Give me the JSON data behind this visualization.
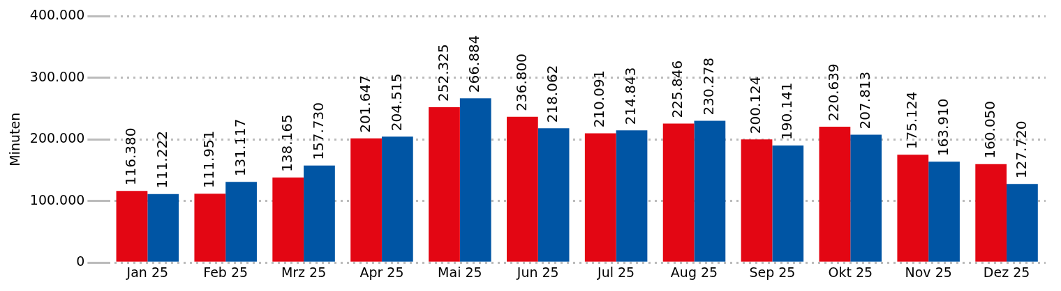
{
  "chart_data": {
    "type": "bar",
    "ylabel": "Minuten",
    "categories": [
      "Jan 25",
      "Feb 25",
      "Mrz 25",
      "Apr 25",
      "Mai 25",
      "Jun 25",
      "Jul 25",
      "Aug 25",
      "Sep 25",
      "Okt 25",
      "Nov 25",
      "Dez 25"
    ],
    "series": [
      {
        "color": "#e30613",
        "values": [
          116380,
          111951,
          138165,
          201647,
          252325,
          236800,
          210091,
          225846,
          200124,
          220639,
          175124,
          160050
        ],
        "value_labels": [
          "116.380",
          "111.951",
          "138.165",
          "201.647",
          "252.325",
          "236.800",
          "210.091",
          "225.846",
          "200.124",
          "220.639",
          "175.124",
          "160.050"
        ]
      },
      {
        "color": "#0055a4",
        "values": [
          111222,
          131117,
          157730,
          204515,
          266884,
          218062,
          214843,
          230278,
          190141,
          207813,
          163910,
          127720
        ],
        "value_labels": [
          "111.222",
          "131.117",
          "157.730",
          "204.515",
          "266.884",
          "218.062",
          "214.843",
          "230.278",
          "190.141",
          "207.813",
          "163.910",
          "127.720"
        ]
      }
    ],
    "ylim": [
      0,
      400000
    ],
    "yticks": [
      {
        "value": 0,
        "label": "0"
      },
      {
        "value": 100000,
        "label": "100.000"
      },
      {
        "value": 200000,
        "label": "200.000"
      },
      {
        "value": 300000,
        "label": "300.000"
      },
      {
        "value": 400000,
        "label": "400.000"
      }
    ],
    "grid": "y",
    "legend": false
  }
}
